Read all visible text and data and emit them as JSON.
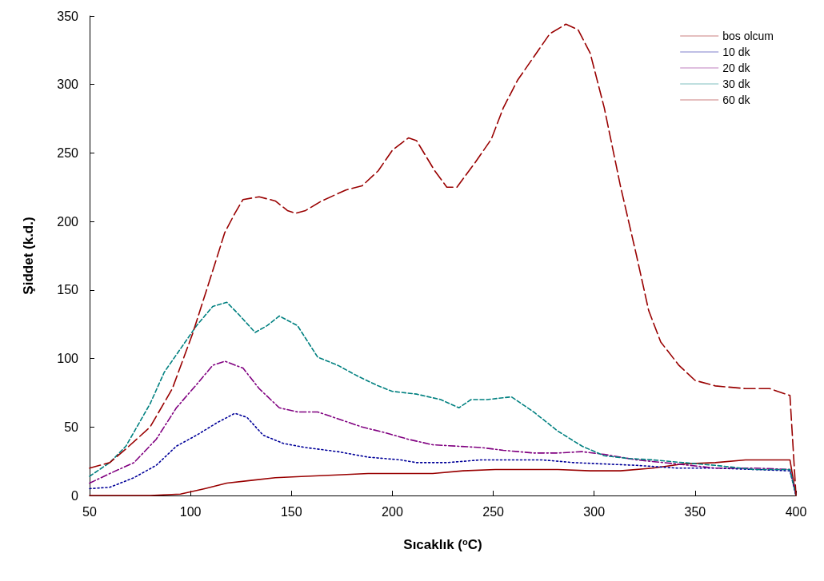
{
  "chart_data": {
    "type": "line",
    "xlabel": "Sıcaklık ($^{o}$C)",
    "ylabel": "Şiddet (k.d.)",
    "xlim": [
      50,
      400
    ],
    "xticks": [
      50,
      100,
      150,
      200,
      250,
      300,
      350,
      400
    ],
    "ylim": [
      0,
      350
    ],
    "yticks": [
      0,
      50,
      100,
      150,
      200,
      250,
      300,
      350
    ],
    "grid": false,
    "legend": "top right",
    "marker": "none",
    "series": [
      {
        "name": "bos olcum",
        "color": "#990000",
        "line_style": "solid",
        "x": [
          50,
          80,
          95,
          107,
          118,
          130,
          142,
          157,
          173,
          188,
          204,
          220,
          235,
          251,
          266,
          282,
          298,
          313,
          329,
          344,
          360,
          375,
          387,
          397,
          400
        ],
        "values": [
          0,
          0,
          1,
          5,
          9,
          11,
          13,
          14,
          15,
          16,
          16,
          16,
          18,
          19,
          19,
          19,
          18,
          18,
          20,
          23,
          24,
          26,
          26,
          26,
          0
        ]
      },
      {
        "name": "10 dk",
        "color": "#000099",
        "line_style": "dotted",
        "x": [
          50,
          60,
          72,
          83,
          93,
          103,
          113,
          122,
          128,
          136,
          146,
          157,
          173,
          188,
          204,
          212,
          227,
          244,
          259,
          274,
          290,
          305,
          321,
          341,
          360,
          379,
          397,
          400
        ],
        "values": [
          5,
          6,
          13,
          22,
          36,
          44,
          53,
          60,
          57,
          44,
          38,
          35,
          32,
          28,
          26,
          24,
          24,
          26,
          26,
          26,
          24,
          23,
          22,
          20,
          20,
          19,
          18,
          0
        ]
      },
      {
        "name": "20 dk",
        "color": "#800080",
        "line_style": "dashdot",
        "x": [
          50,
          60,
          72,
          83,
          93,
          103,
          111,
          117,
          126,
          134,
          144,
          153,
          163,
          173,
          185,
          196,
          208,
          220,
          232,
          244,
          255,
          270,
          282,
          294,
          305,
          321,
          341,
          360,
          379,
          397,
          400
        ],
        "values": [
          9,
          16,
          24,
          41,
          64,
          81,
          95,
          98,
          93,
          78,
          64,
          61,
          61,
          56,
          50,
          46,
          41,
          37,
          36,
          35,
          33,
          31,
          31,
          32,
          30,
          26,
          23,
          20,
          20,
          19,
          0
        ]
      },
      {
        "name": "30 dk",
        "color": "#008080",
        "line_style": "dashed",
        "x": [
          50,
          60,
          68,
          80,
          87,
          95,
          103,
          111,
          118,
          124,
          132,
          138,
          144,
          153,
          163,
          173,
          183,
          193,
          200,
          212,
          224,
          233,
          239,
          247,
          259,
          270,
          282,
          294,
          305,
          317,
          329,
          344,
          360,
          379,
          397,
          400
        ],
        "values": [
          14,
          24,
          36,
          67,
          90,
          107,
          124,
          138,
          141,
          132,
          119,
          124,
          131,
          124,
          101,
          95,
          87,
          80,
          76,
          74,
          70,
          64,
          70,
          70,
          72,
          61,
          47,
          36,
          29,
          27,
          26,
          24,
          22,
          19,
          19,
          0
        ]
      },
      {
        "name": "60 dk",
        "color": "#990000",
        "line_style": "longdash",
        "x": [
          50,
          60,
          68,
          80,
          91,
          101,
          111,
          117,
          122,
          126,
          134,
          142,
          148,
          152,
          157,
          165,
          177,
          185,
          193,
          200,
          208,
          212,
          221,
          227,
          232,
          241,
          249,
          255,
          262,
          270,
          278,
          286,
          292,
          298,
          305,
          313,
          321,
          327,
          333,
          342,
          350,
          360,
          375,
          387,
          397,
          400
        ],
        "values": [
          20,
          24,
          34,
          50,
          78,
          118,
          164,
          192,
          206,
          216,
          218,
          215,
          208,
          206,
          208,
          215,
          223,
          226,
          237,
          252,
          261,
          259,
          237,
          225,
          225,
          243,
          260,
          283,
          303,
          320,
          337,
          344,
          340,
          323,
          283,
          226,
          175,
          135,
          112,
          95,
          84,
          80,
          78,
          78,
          73,
          0
        ]
      }
    ]
  }
}
